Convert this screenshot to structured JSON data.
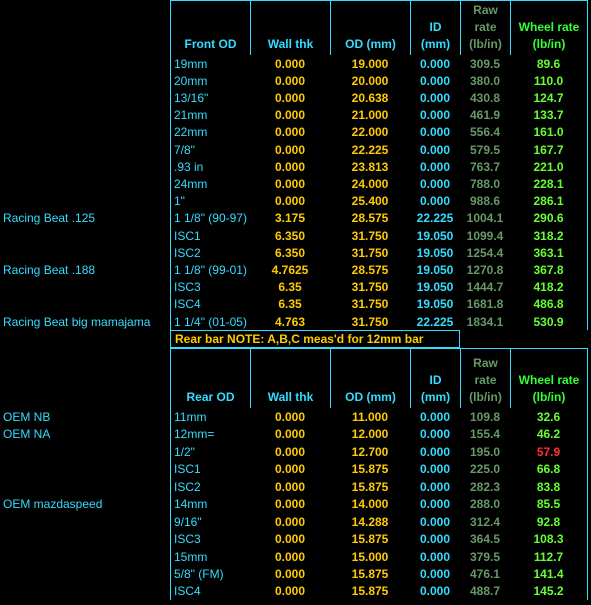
{
  "front": {
    "header": [
      [
        "Front OD"
      ],
      [
        "Wall thk"
      ],
      [
        "OD (mm)"
      ],
      [
        "ID",
        "(mm)"
      ],
      [
        "Raw",
        "rate",
        "(lb/in)"
      ],
      [
        "Wheel rate",
        "(lb/in)"
      ]
    ],
    "rows": [
      {
        "cells": [
          "",
          "19mm",
          "0.000",
          "19.000",
          "0.000",
          "309.5",
          "89.6"
        ]
      },
      {
        "cells": [
          "",
          "20mm",
          "0.000",
          "20.000",
          "0.000",
          "380.0",
          "110.0"
        ]
      },
      {
        "cells": [
          "",
          "13/16\"",
          "0.000",
          "20.638",
          "0.000",
          "430.8",
          "124.7"
        ]
      },
      {
        "cells": [
          "",
          "21mm",
          "0.000",
          "21.000",
          "0.000",
          "461.9",
          "133.7"
        ]
      },
      {
        "cells": [
          "",
          "22mm",
          "0.000",
          "22.000",
          "0.000",
          "556.4",
          "161.0"
        ]
      },
      {
        "cells": [
          "",
          "7/8\"",
          "0.000",
          "22.225",
          "0.000",
          "579.5",
          "167.7"
        ]
      },
      {
        "cells": [
          "",
          ".93 in",
          "0.000",
          "23.813",
          "0.000",
          "763.7",
          "221.0"
        ]
      },
      {
        "cells": [
          "",
          "24mm",
          "0.000",
          "24.000",
          "0.000",
          "788.0",
          "228.1"
        ]
      },
      {
        "cells": [
          "",
          "1\"",
          "0.000",
          "25.400",
          "0.000",
          "988.6",
          "286.1"
        ]
      },
      {
        "cells": [
          "Racing Beat .125",
          "1 1/8\" (90-97)",
          "3.175",
          "28.575",
          "22.225",
          "1004.1",
          "290.6"
        ]
      },
      {
        "cells": [
          "",
          "ISC1",
          "6.350",
          "31.750",
          "19.050",
          "1099.4",
          "318.2"
        ]
      },
      {
        "cells": [
          "",
          "ISC2",
          "6.350",
          "31.750",
          "19.050",
          "1254.4",
          "363.1"
        ]
      },
      {
        "cells": [
          "Racing Beat .188",
          "1 1/8\" (99-01)",
          "4.7625",
          "28.575",
          "19.050",
          "1270.8",
          "367.8"
        ]
      },
      {
        "cells": [
          "",
          "ISC3",
          "6.35",
          "31.750",
          "19.050",
          "1444.7",
          "418.2"
        ]
      },
      {
        "cells": [
          "",
          "ISC4",
          "6.35",
          "31.750",
          "19.050",
          "1681.8",
          "486.8"
        ]
      },
      {
        "cells": [
          "Racing Beat big mamajama",
          "1 1/4\" (01-05)",
          "4.763",
          "31.750",
          "22.225",
          "1834.1",
          "530.9"
        ]
      }
    ]
  },
  "note": "Rear bar NOTE: A,B,C meas'd for 12mm bar",
  "rear": {
    "header": [
      [
        "Rear OD"
      ],
      [
        "Wall thk"
      ],
      [
        "OD (mm)"
      ],
      [
        "ID",
        "(mm)"
      ],
      [
        "Raw",
        "rate",
        "(lb/in)"
      ],
      [
        "Wheel rate",
        "(lb/in)"
      ]
    ],
    "rows": [
      {
        "cells": [
          "OEM NB",
          "11mm",
          "0.000",
          "11.000",
          "0.000",
          "109.8",
          "32.6"
        ]
      },
      {
        "cells": [
          "OEM NA",
          "12mm=",
          "0.000",
          "12.000",
          "0.000",
          "155.4",
          "46.2"
        ]
      },
      {
        "cells": [
          "",
          "1/2\"",
          "0.000",
          "12.700",
          "0.000",
          "195.0",
          "57.9"
        ],
        "wheel_rate_color": "#ff3030"
      },
      {
        "cells": [
          "",
          "ISC1",
          "0.000",
          "15.875",
          "0.000",
          "225.0",
          "66.8"
        ]
      },
      {
        "cells": [
          "",
          "ISC2",
          "0.000",
          "15.875",
          "0.000",
          "282.3",
          "83.8"
        ]
      },
      {
        "cells": [
          "OEM mazdaspeed",
          "14mm",
          "0.000",
          "14.000",
          "0.000",
          "288.0",
          "85.5"
        ]
      },
      {
        "cells": [
          "",
          "9/16\"",
          "0.000",
          "14.288",
          "0.000",
          "312.4",
          "92.8"
        ]
      },
      {
        "cells": [
          "",
          "ISC3",
          "0.000",
          "15.875",
          "0.000",
          "364.5",
          "108.3"
        ]
      },
      {
        "cells": [
          "",
          "15mm",
          "0.000",
          "15.000",
          "0.000",
          "379.5",
          "112.7"
        ]
      },
      {
        "cells": [
          "",
          "5/8\" (FM)",
          "0.000",
          "15.875",
          "0.000",
          "476.1",
          "141.4"
        ]
      },
      {
        "cells": [
          "",
          "ISC4",
          "0.000",
          "15.875",
          "0.000",
          "488.7",
          "145.2"
        ]
      }
    ]
  }
}
